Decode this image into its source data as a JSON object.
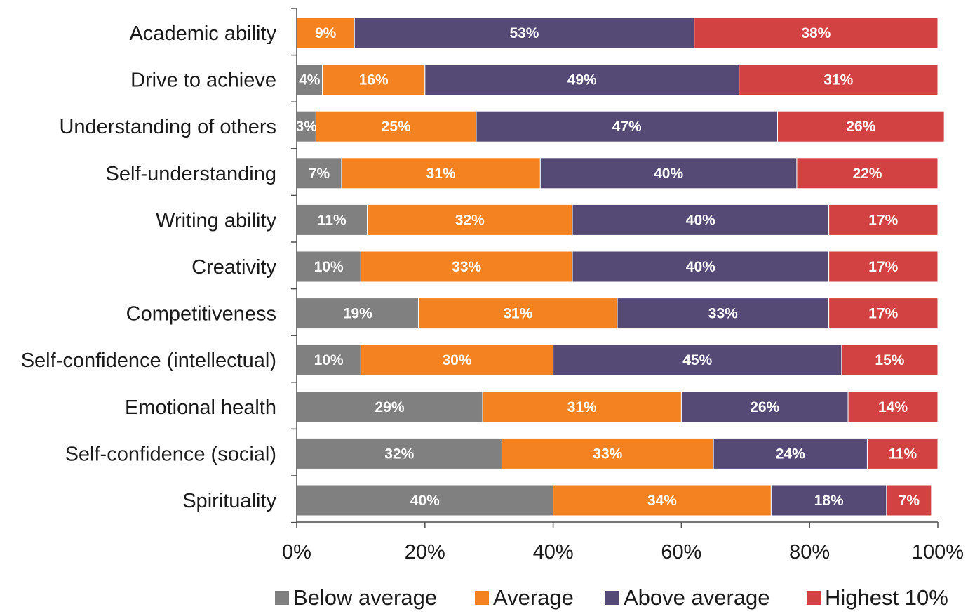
{
  "chart_data": {
    "type": "bar",
    "orientation": "horizontal",
    "stacked": true,
    "percent_stacked": true,
    "categories": [
      "Academic ability",
      "Drive to achieve",
      "Understanding of others",
      "Self-understanding",
      "Writing ability",
      "Creativity",
      "Competitiveness",
      "Self-confidence (intellectual)",
      "Emotional health",
      "Self-confidence (social)",
      "Spirituality"
    ],
    "series": [
      {
        "name": "Below average",
        "color": "#808080",
        "values": [
          0,
          4,
          3,
          7,
          11,
          10,
          19,
          10,
          29,
          32,
          40
        ],
        "labels": [
          "",
          "4%",
          "3%",
          "7%",
          "11%",
          "10%",
          "19%",
          "10%",
          "29%",
          "32%",
          "40%"
        ]
      },
      {
        "name": "Average",
        "color": "#F58220",
        "values": [
          9,
          16,
          25,
          31,
          32,
          33,
          31,
          30,
          31,
          33,
          34
        ],
        "labels": [
          "9%",
          "16%",
          "25%",
          "31%",
          "32%",
          "33%",
          "31%",
          "30%",
          "31%",
          "33%",
          "34%"
        ]
      },
      {
        "name": "Above average",
        "color": "#544A75",
        "values": [
          53,
          49,
          47,
          40,
          40,
          40,
          33,
          45,
          26,
          24,
          18
        ],
        "labels": [
          "53%",
          "49%",
          "47%",
          "40%",
          "40%",
          "40%",
          "33%",
          "45%",
          "26%",
          "24%",
          "18%"
        ]
      },
      {
        "name": "Highest 10%",
        "color": "#D24242",
        "values": [
          38,
          31,
          26,
          22,
          17,
          17,
          17,
          15,
          14,
          11,
          7
        ],
        "labels": [
          "38%",
          "31%",
          "26%",
          "22%",
          "17%",
          "17%",
          "17%",
          "15%",
          "14%",
          "11%",
          "7%"
        ]
      }
    ],
    "xlim": [
      0,
      100
    ],
    "xticks": [
      "0%",
      "20%",
      "40%",
      "60%",
      "80%",
      "100%"
    ],
    "grid": false,
    "legend_position": "bottom",
    "title": "",
    "xlabel": "",
    "ylabel": ""
  }
}
